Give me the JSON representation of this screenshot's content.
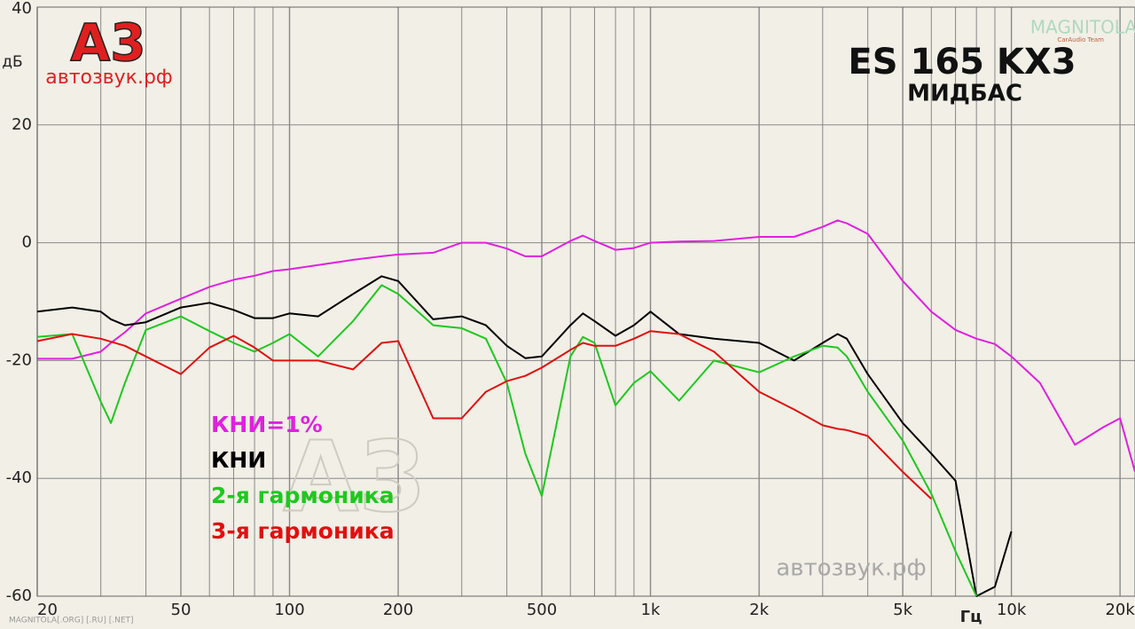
{
  "chart_data": {
    "type": "line",
    "title": "ES 165 KX3",
    "subtitle": "МИДБАС",
    "y_label": "дБ",
    "x_label": "Гц",
    "logo": "А3",
    "logo_site": "автозвук.рф",
    "watermark": "автозвук.рф",
    "corner_brand": "MAGNITOLA",
    "corner_brand_sub": "CarAudio Team",
    "footer": "MAGNITOLA[.ORG] [.RU] [.NET]",
    "xlog": true,
    "grid": true,
    "xlim": [
      20,
      22000
    ],
    "ylim": [
      -60,
      40
    ],
    "xticks": [
      20,
      50,
      100,
      200,
      500,
      {
        "value": 1000,
        "label": "1k"
      },
      {
        "value": 2000,
        "label": "2k"
      },
      {
        "value": 5000,
        "label": "5k"
      },
      {
        "value": 10000,
        "label": "10k"
      },
      {
        "value": 20000,
        "label": "20k"
      }
    ],
    "x_grid": [
      30,
      40,
      60,
      70,
      80,
      90,
      300,
      400,
      600,
      700,
      800,
      900,
      3000,
      4000,
      6000,
      7000,
      8000,
      9000
    ],
    "yticks": [
      40,
      20,
      0,
      -20,
      -40,
      -60
    ],
    "x": [
      20,
      25,
      30,
      32,
      35,
      40,
      50,
      60,
      70,
      80,
      90,
      100,
      120,
      150,
      180,
      200,
      250,
      300,
      350,
      400,
      450,
      500,
      600,
      650,
      700,
      800,
      900,
      1000,
      1200,
      1500,
      2000,
      2500,
      3000,
      3300,
      3500,
      4000,
      5000,
      6000,
      7000,
      8000,
      9000,
      10000,
      12000,
      15000,
      18000,
      20000,
      22000
    ],
    "series": [
      {
        "name": "КНИ=1%",
        "color": "#e020e0",
        "values": [
          -19.7,
          -19.7,
          -18.5,
          -17,
          -15.2,
          -12,
          -9.5,
          -7.5,
          -6.3,
          -5.6,
          -4.8,
          -4.5,
          -3.8,
          -2.9,
          -2.3,
          -2,
          -1.7,
          0,
          0,
          -1,
          -2.3,
          -2.3,
          0.3,
          1.2,
          0.3,
          -1.2,
          -0.9,
          0,
          0.2,
          0.3,
          1,
          1,
          2.7,
          3.8,
          3.3,
          1.5,
          -6.5,
          -11.7,
          -14.8,
          -16.3,
          -17.2,
          -19.3,
          -23.8,
          -34.3,
          -31.3,
          -29.8,
          -38.9
        ]
      },
      {
        "name": "КНИ",
        "color": "#000000",
        "values": [
          -11.7,
          -11,
          -11.7,
          -13,
          -14,
          -13.5,
          -11,
          -10.2,
          -11.4,
          -12.8,
          -12.8,
          -12,
          -12.5,
          -8.7,
          -5.7,
          -6.5,
          -13,
          -12.5,
          -14,
          -17.5,
          -19.6,
          -19.3,
          -14,
          -12,
          -13.3,
          -15.8,
          -14,
          -11.7,
          -15.5,
          -16.3,
          -17,
          -20,
          -17,
          -15.5,
          -16.3,
          -22.3,
          -30.6,
          -35.8,
          -40.4,
          -60,
          -58.4,
          -49,
          null,
          null,
          null,
          null,
          null
        ]
      },
      {
        "name": "2-я гармоника",
        "color": "#1ec81e",
        "values": [
          -16,
          -15.5,
          -27,
          -30.6,
          -23.8,
          -14.8,
          -12.5,
          -15,
          -17,
          -18.5,
          -17,
          -15.5,
          -19.3,
          -13.3,
          -7.2,
          -8.7,
          -14,
          -14.5,
          -16.3,
          -23.8,
          -35.8,
          -43,
          -19.3,
          -16,
          -17,
          -27.6,
          -23.8,
          -21.8,
          -26.8,
          -20,
          -22,
          -19.3,
          -17.5,
          -17.8,
          -19.3,
          -25.3,
          -33.6,
          -42.6,
          -52.4,
          -60,
          null,
          null,
          null,
          null,
          null,
          null,
          null
        ]
      },
      {
        "name": "3-я гармоника",
        "color": "#e01010",
        "values": [
          -16.7,
          -15.5,
          -16.3,
          -16.8,
          -17.5,
          -19.3,
          -22.3,
          -17.8,
          -15.8,
          -17.8,
          -20,
          -20,
          -20,
          -21.5,
          -17,
          -16.7,
          -29.8,
          -29.8,
          -25.3,
          -23.5,
          -22.6,
          -21.2,
          -18.2,
          -17,
          -17.5,
          -17.5,
          -16.3,
          -15,
          -15.5,
          -18.5,
          -25.3,
          -28.3,
          -31,
          -31.6,
          -31.8,
          -32.8,
          -38.9,
          -43.5,
          null,
          null,
          null,
          null,
          null,
          null,
          null,
          null,
          null
        ]
      }
    ]
  }
}
